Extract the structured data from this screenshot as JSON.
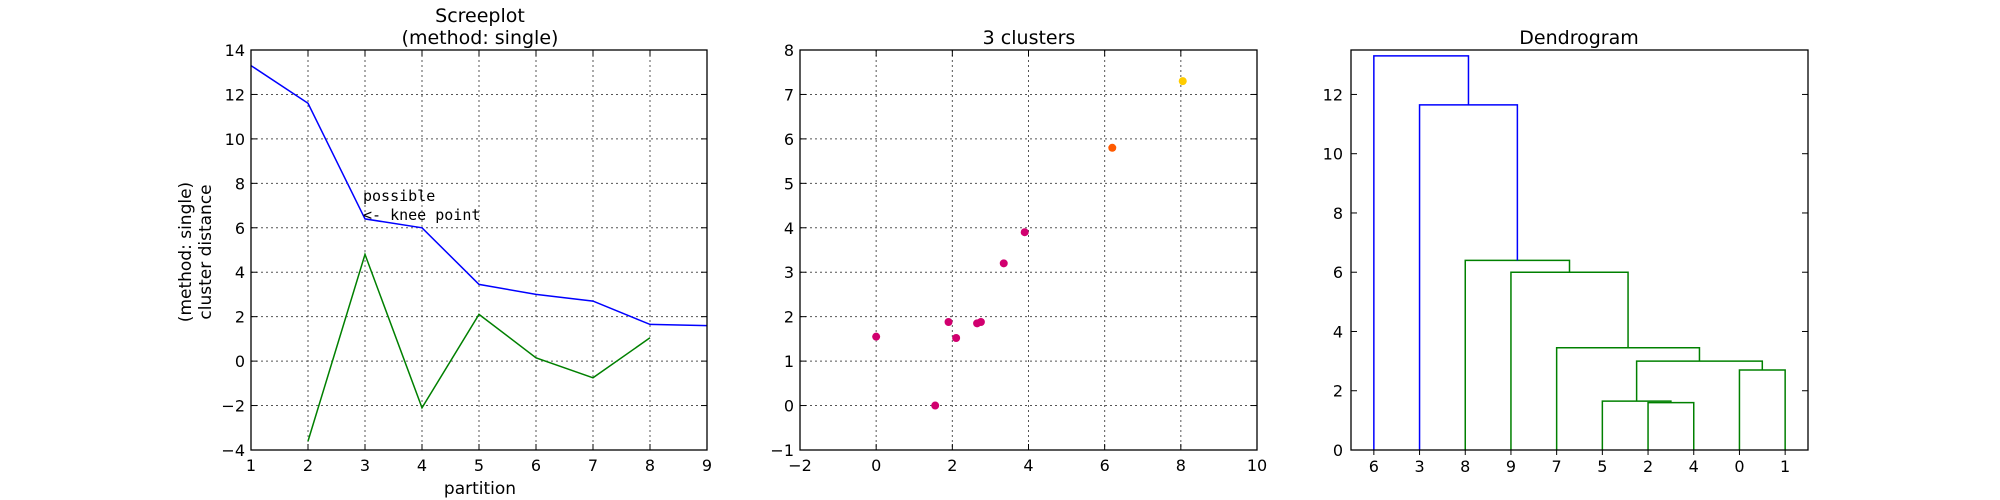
{
  "chart_data": [
    {
      "type": "line",
      "title": "Screeplot",
      "subtitle": "(method: single)",
      "xlabel": "partition",
      "ylabel_line1": "(method: single)",
      "ylabel_line2": "cluster distance",
      "xlim": [
        1,
        9
      ],
      "ylim": [
        -4,
        14
      ],
      "xticks": [
        1,
        2,
        3,
        4,
        5,
        6,
        7,
        8,
        9
      ],
      "yticks": [
        -4,
        -2,
        0,
        2,
        4,
        6,
        8,
        10,
        12,
        14
      ],
      "grid": true,
      "series": [
        {
          "color": "#0000ff",
          "x": [
            1,
            2,
            3,
            4,
            5,
            6,
            7,
            8,
            9
          ],
          "y": [
            13.3,
            11.6,
            6.4,
            6.0,
            3.45,
            3.0,
            2.7,
            1.65,
            1.6
          ]
        },
        {
          "color": "#008000",
          "x": [
            2,
            3,
            4,
            5,
            6,
            7,
            8
          ],
          "y": [
            -3.6,
            4.8,
            -2.1,
            2.1,
            0.15,
            -0.75,
            1.05
          ]
        }
      ],
      "annotation": {
        "line1": "possible",
        "line2": "<- knee point",
        "x": 3,
        "y": 6.3
      }
    },
    {
      "type": "scatter",
      "title": "3 clusters",
      "xlim": [
        -2,
        10
      ],
      "ylim": [
        -1,
        8
      ],
      "xticks": [
        -2,
        0,
        2,
        4,
        6,
        8,
        10
      ],
      "yticks": [
        -1,
        0,
        1,
        2,
        3,
        4,
        5,
        6,
        7,
        8
      ],
      "grid": true,
      "points": [
        {
          "x": 0.0,
          "y": 1.55,
          "color": "#d1006f"
        },
        {
          "x": 1.55,
          "y": 0.0,
          "color": "#d1006f"
        },
        {
          "x": 1.9,
          "y": 1.88,
          "color": "#d1006f"
        },
        {
          "x": 2.1,
          "y": 1.52,
          "color": "#d1006f"
        },
        {
          "x": 2.65,
          "y": 1.85,
          "color": "#d1006f"
        },
        {
          "x": 2.75,
          "y": 1.88,
          "color": "#d1006f"
        },
        {
          "x": 3.35,
          "y": 3.2,
          "color": "#d1006f"
        },
        {
          "x": 3.9,
          "y": 3.9,
          "color": "#d1006f"
        },
        {
          "x": 6.2,
          "y": 5.8,
          "color": "#ff5a00"
        },
        {
          "x": 8.05,
          "y": 7.3,
          "color": "#ffcc00"
        }
      ]
    },
    {
      "type": "dendrogram",
      "title": "Dendrogram",
      "ylim": [
        0,
        13.5
      ],
      "yticks": [
        0,
        2,
        4,
        6,
        8,
        10,
        12
      ],
      "grid": false,
      "leaves": [
        "6",
        "3",
        "8",
        "9",
        "7",
        "5",
        "2",
        "4",
        "0",
        "1"
      ],
      "links": [
        {
          "a": 6,
          "b": 7,
          "h": 1.6,
          "color": "#008000"
        },
        {
          "a": 5,
          "b": 10,
          "h": 1.65,
          "color": "#008000"
        },
        {
          "a": 8,
          "b": 9,
          "h": 2.7,
          "color": "#008000"
        },
        {
          "a": 11,
          "b": 12,
          "h": 3.0,
          "color": "#008000"
        },
        {
          "a": 4,
          "b": 13,
          "h": 3.45,
          "color": "#008000"
        },
        {
          "a": 3,
          "b": 14,
          "h": 6.0,
          "color": "#008000"
        },
        {
          "a": 2,
          "b": 15,
          "h": 6.4,
          "color": "#008000"
        },
        {
          "a": 1,
          "b": 16,
          "h": 11.65,
          "color": "#0000ff"
        },
        {
          "a": 0,
          "b": 17,
          "h": 13.3,
          "color": "#0000ff"
        }
      ]
    }
  ]
}
